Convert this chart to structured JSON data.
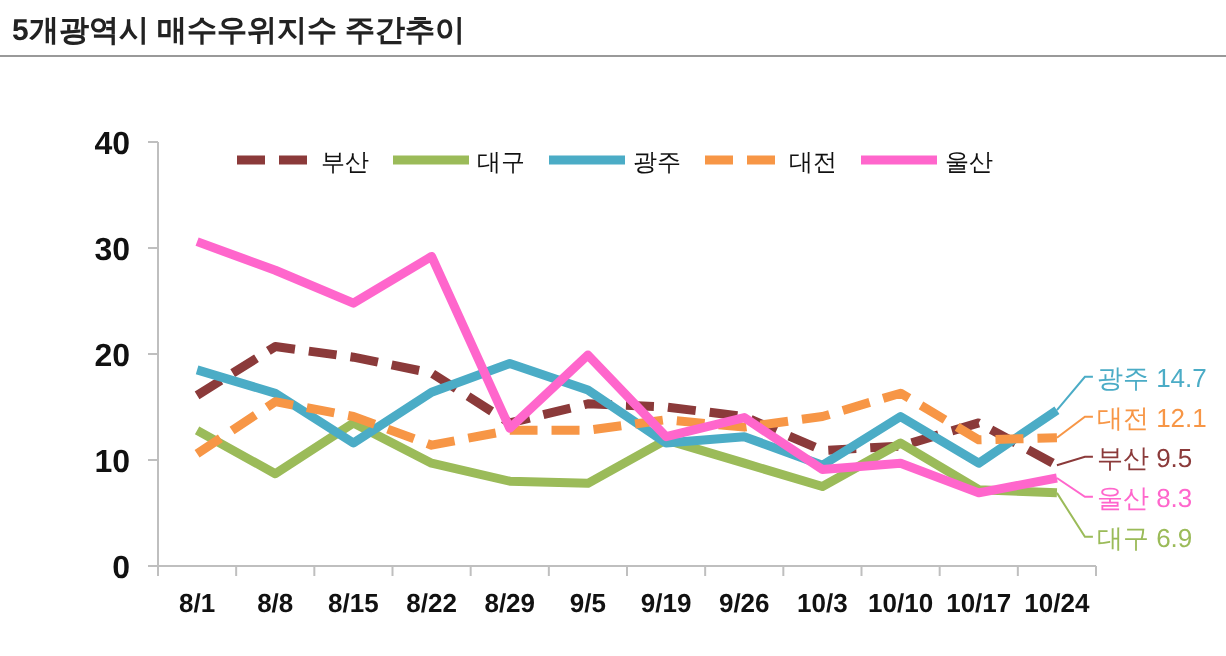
{
  "chart_data": {
    "type": "line",
    "title": "5개광역시 매수우위지수 주간추이",
    "categories": [
      "8/1",
      "8/8",
      "8/15",
      "8/22",
      "8/29",
      "9/5",
      "9/19",
      "9/26",
      "10/3",
      "10/10",
      "10/17",
      "10/24"
    ],
    "ylim": [
      0,
      40
    ],
    "yticks": [
      0,
      10,
      20,
      30,
      40
    ],
    "grid": false,
    "legend": "top",
    "marker": "none",
    "series": [
      {
        "name": "부산",
        "color": "#8b3a3a",
        "line_style": "dashed",
        "values": [
          16.1,
          20.7,
          19.7,
          18.2,
          13.5,
          15.3,
          15.0,
          14.1,
          10.9,
          11.3,
          13.5,
          9.5
        ],
        "value_labels": [
          null,
          null,
          null,
          null,
          null,
          null,
          null,
          null,
          null,
          null,
          null,
          "부산 9.5"
        ]
      },
      {
        "name": "대구",
        "color": "#9bbb59",
        "line_style": "solid",
        "values": [
          12.8,
          8.7,
          13.5,
          9.7,
          8.0,
          7.8,
          11.9,
          9.7,
          7.5,
          11.6,
          7.2,
          6.9
        ],
        "value_labels": [
          null,
          null,
          null,
          null,
          null,
          null,
          null,
          null,
          null,
          null,
          null,
          "대구 6.9"
        ]
      },
      {
        "name": "광주",
        "color": "#4bacc6",
        "line_style": "solid",
        "values": [
          18.5,
          16.3,
          11.6,
          16.4,
          19.1,
          16.6,
          11.6,
          12.2,
          9.5,
          14.1,
          9.7,
          14.7
        ],
        "value_labels": [
          null,
          null,
          null,
          null,
          null,
          null,
          null,
          null,
          null,
          null,
          null,
          "광주 14.7"
        ]
      },
      {
        "name": "대전",
        "color": "#f79646",
        "line_style": "dashed",
        "values": [
          10.6,
          15.5,
          14.1,
          11.4,
          12.8,
          12.8,
          13.8,
          13.1,
          14.1,
          16.3,
          11.9,
          12.1
        ],
        "value_labels": [
          null,
          null,
          null,
          null,
          null,
          null,
          null,
          null,
          null,
          null,
          null,
          "대전 12.1"
        ]
      },
      {
        "name": "울산",
        "color": "#ff66cc",
        "line_style": "solid",
        "values": [
          30.6,
          27.9,
          24.8,
          29.2,
          13.0,
          19.9,
          12.2,
          14.0,
          9.1,
          9.7,
          6.9,
          8.3
        ],
        "value_labels": [
          null,
          null,
          null,
          null,
          null,
          null,
          null,
          null,
          null,
          null,
          null,
          "울산 8.3"
        ]
      }
    ]
  }
}
